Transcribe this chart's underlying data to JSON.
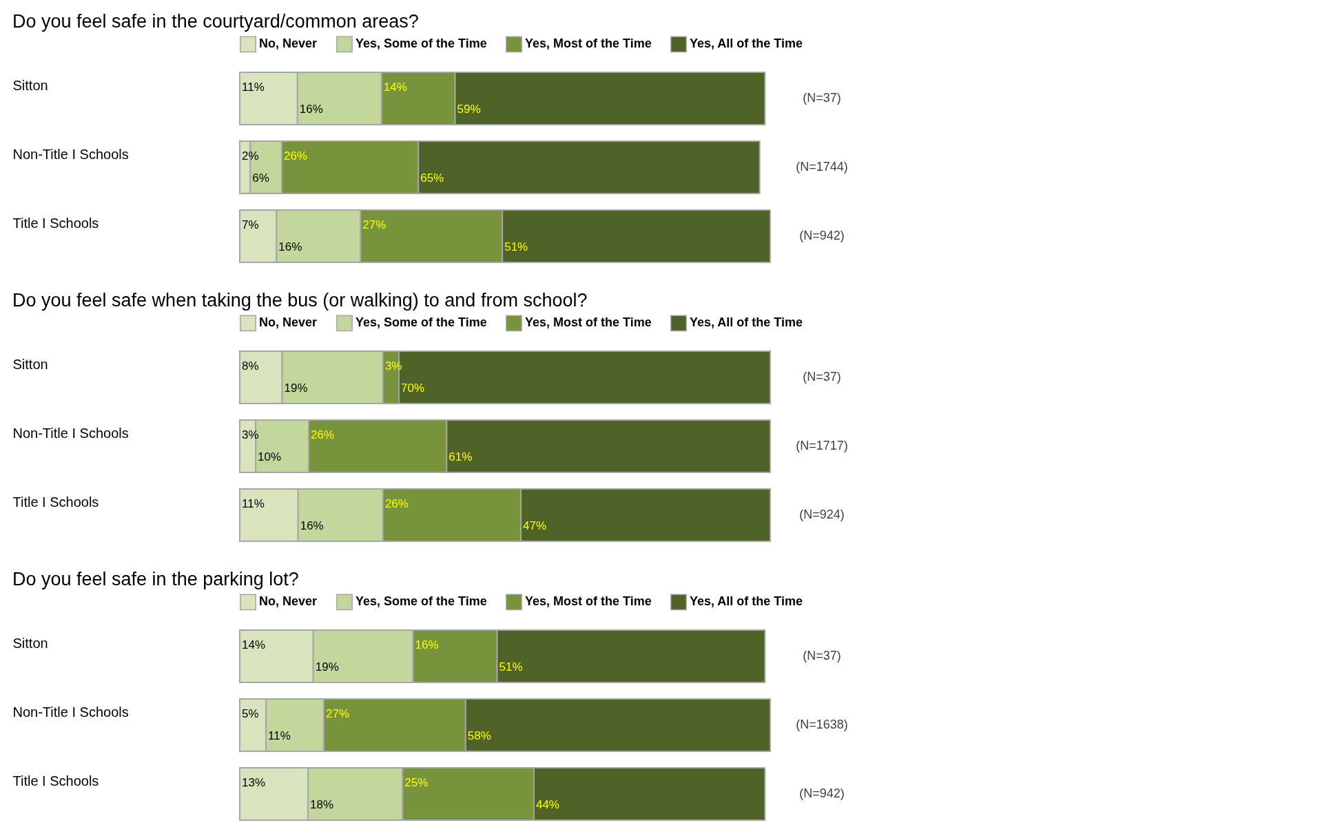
{
  "chart_data": [
    {
      "type": "bar",
      "orientation": "horizontal",
      "stacked": true,
      "legend": "top",
      "title": "Do you feel safe in the courtyard/common areas?",
      "categories": [
        "Sitton",
        "Non-Title I Schools",
        "Title I Schools"
      ],
      "annotations": [
        "(N=37)",
        "(N=1744)",
        "(N=942)"
      ],
      "series": [
        {
          "name": "No, Never",
          "color": "#d7e4bd",
          "values": [
            11,
            2,
            7
          ],
          "value_labels": [
            "11%",
            "2%",
            "7%"
          ]
        },
        {
          "name": "Yes, Some of the Time",
          "color": "#c3d69b",
          "values": [
            16,
            6,
            16
          ],
          "value_labels": [
            "16%",
            "6%",
            "16%"
          ]
        },
        {
          "name": "Yes, Most of the Time",
          "color": "#77933c",
          "values": [
            14,
            26,
            27
          ],
          "value_labels": [
            "14%",
            "26%",
            "27%"
          ]
        },
        {
          "name": "Yes, All of the Time",
          "color": "#4f6228",
          "values": [
            59,
            65,
            51
          ],
          "value_labels": [
            "59%",
            "65%",
            "51%"
          ]
        }
      ]
    },
    {
      "type": "bar",
      "orientation": "horizontal",
      "stacked": true,
      "legend": "top",
      "title": "Do you feel safe when taking the bus (or walking) to and from school?",
      "categories": [
        "Sitton",
        "Non-Title I Schools",
        "Title I Schools"
      ],
      "annotations": [
        "(N=37)",
        "(N=1717)",
        "(N=924)"
      ],
      "series": [
        {
          "name": "No, Never",
          "color": "#d7e4bd",
          "values": [
            8,
            3,
            11
          ],
          "value_labels": [
            "8%",
            "3%",
            "11%"
          ]
        },
        {
          "name": "Yes, Some of the Time",
          "color": "#c3d69b",
          "values": [
            19,
            10,
            16
          ],
          "value_labels": [
            "19%",
            "10%",
            "16%"
          ]
        },
        {
          "name": "Yes, Most of the Time",
          "color": "#77933c",
          "values": [
            3,
            26,
            26
          ],
          "value_labels": [
            "3%",
            "26%",
            "26%"
          ]
        },
        {
          "name": "Yes, All of the Time",
          "color": "#4f6228",
          "values": [
            70,
            61,
            47
          ],
          "value_labels": [
            "70%",
            "61%",
            "47%"
          ]
        }
      ]
    },
    {
      "type": "bar",
      "orientation": "horizontal",
      "stacked": true,
      "legend": "top",
      "title": "Do you feel safe in the parking lot?",
      "categories": [
        "Sitton",
        "Non-Title I Schools",
        "Title I Schools"
      ],
      "annotations": [
        "(N=37)",
        "(N=1638)",
        "(N=942)"
      ],
      "series": [
        {
          "name": "No, Never",
          "color": "#d7e4bd",
          "values": [
            14,
            5,
            13
          ],
          "value_labels": [
            "14%",
            "5%",
            "13%"
          ]
        },
        {
          "name": "Yes, Some of the Time",
          "color": "#c3d69b",
          "values": [
            19,
            11,
            18
          ],
          "value_labels": [
            "19%",
            "11%",
            "18%"
          ]
        },
        {
          "name": "Yes, Most of the Time",
          "color": "#77933c",
          "values": [
            16,
            27,
            25
          ],
          "value_labels": [
            "16%",
            "27%",
            "25%"
          ]
        },
        {
          "name": "Yes, All of the Time",
          "color": "#4f6228",
          "values": [
            51,
            58,
            44
          ],
          "value_labels": [
            "51%",
            "58%",
            "44%"
          ]
        }
      ]
    }
  ]
}
